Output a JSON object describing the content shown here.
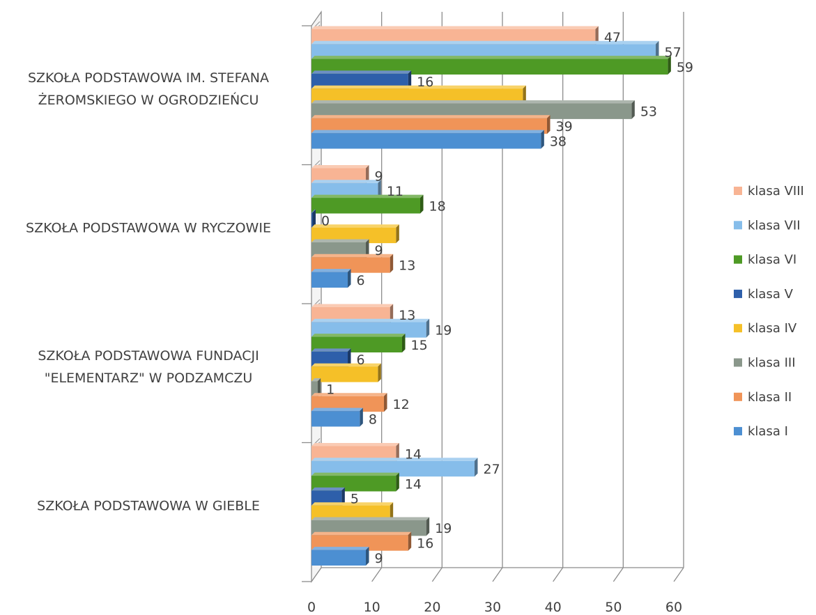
{
  "chart_data": {
    "type": "bar",
    "orientation": "horizontal",
    "style": "3d",
    "categories": [
      [
        "SZKOŁA PODSTAWOWA IM. STEFANA",
        "ŻEROMSKIEGO W OGRODZIEŃCU"
      ],
      [
        "SZKOŁA PODSTAWOWA W RYCZOWIE"
      ],
      [
        "SZKOŁA PODSTAWOWA FUNDACJI",
        "\"ELEMENTARZ\" W PODZAMCZU"
      ],
      [
        "SZKOŁA PODSTAWOWA W GIEBLE"
      ]
    ],
    "series": [
      {
        "name": "klasa VIII",
        "color": "#F8B494",
        "values": [
          47,
          9,
          13,
          14
        ]
      },
      {
        "name": "klasa VII",
        "color": "#86BDEA",
        "values": [
          57,
          11,
          19,
          27
        ]
      },
      {
        "name": "klasa VI",
        "color": "#4E9A25",
        "values": [
          59,
          18,
          15,
          14
        ]
      },
      {
        "name": "klasa V",
        "color": "#2E5FAA",
        "values": [
          16,
          0,
          6,
          5
        ]
      },
      {
        "name": "klasa IV",
        "color": "#F5C028",
        "values": [
          35,
          14,
          11,
          13
        ]
      },
      {
        "name": "klasa III",
        "color": "#8A978B",
        "values": [
          53,
          9,
          1,
          19
        ]
      },
      {
        "name": "klasa II",
        "color": "#F09458",
        "values": [
          39,
          13,
          12,
          16
        ]
      },
      {
        "name": "klasa I",
        "color": "#4C8FD2",
        "values": [
          38,
          6,
          8,
          9
        ]
      }
    ],
    "value_labels": [
      [
        "47",
        "9",
        "13",
        "14"
      ],
      [
        "57",
        "11",
        "19",
        "27"
      ],
      [
        "59",
        "18",
        "15",
        "14"
      ],
      [
        "16",
        "0",
        "6",
        "5"
      ],
      [
        "",
        "",
        "",
        ""
      ],
      [
        "53",
        "9",
        "1",
        "19"
      ],
      [
        "39",
        "13",
        "12",
        "16"
      ],
      [
        "38",
        "6",
        "8",
        "9"
      ]
    ],
    "xticks": [
      "0",
      "10",
      "20",
      "30",
      "40",
      "50",
      "60"
    ],
    "xlim": [
      0,
      60
    ],
    "grid": true,
    "legend_position": "right",
    "title": "",
    "xlabel": "",
    "ylabel": ""
  }
}
